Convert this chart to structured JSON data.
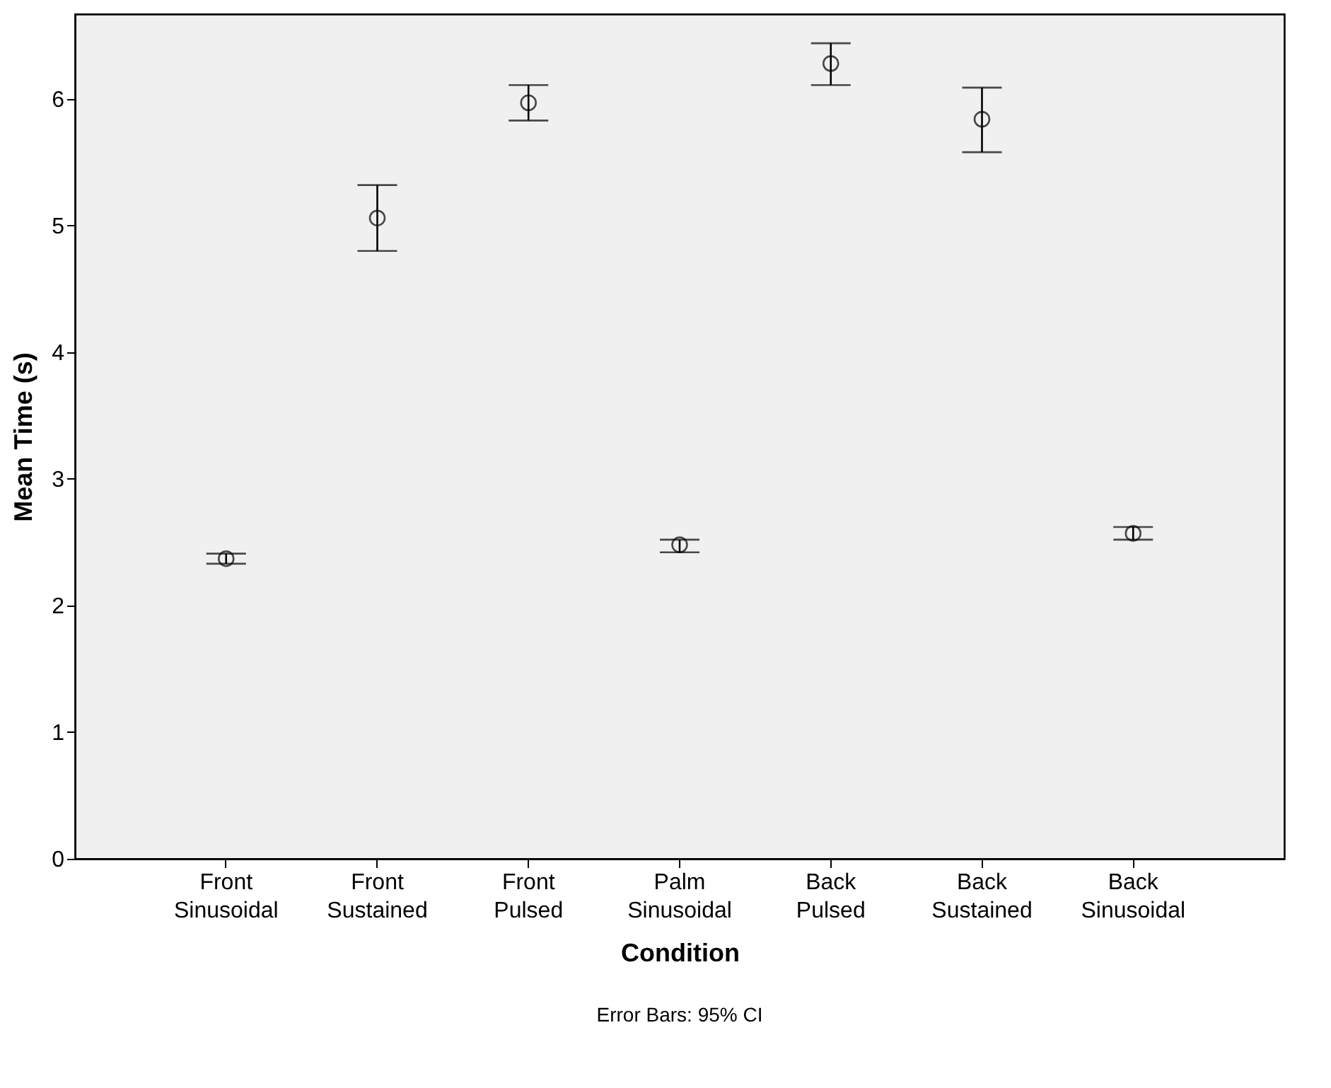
{
  "chart_data": {
    "type": "scatter",
    "xlabel": "Condition",
    "ylabel": "Mean Time (s)",
    "annotations": [
      "Error Bars: 95% CI"
    ],
    "categories": [
      "Front Sinusoidal",
      "Front Sustained",
      "Front Pulsed",
      "Palm Sinusoidal",
      "Back Pulsed",
      "Back Sustained",
      "Back Sinusoidal"
    ],
    "values": [
      2.37,
      5.06,
      5.97,
      2.48,
      6.28,
      5.84,
      2.57
    ],
    "errors": [
      [
        2.33,
        2.41
      ],
      [
        4.8,
        5.32
      ],
      [
        5.83,
        6.11
      ],
      [
        2.42,
        2.52
      ],
      [
        6.11,
        6.44
      ],
      [
        5.58,
        6.09
      ],
      [
        2.52,
        2.62
      ]
    ],
    "color": "#000000",
    "marker": "circle",
    "grid": false,
    "ylim": [
      0,
      6.67
    ],
    "yticks": [
      0,
      1,
      2,
      3,
      4,
      5,
      6
    ]
  }
}
